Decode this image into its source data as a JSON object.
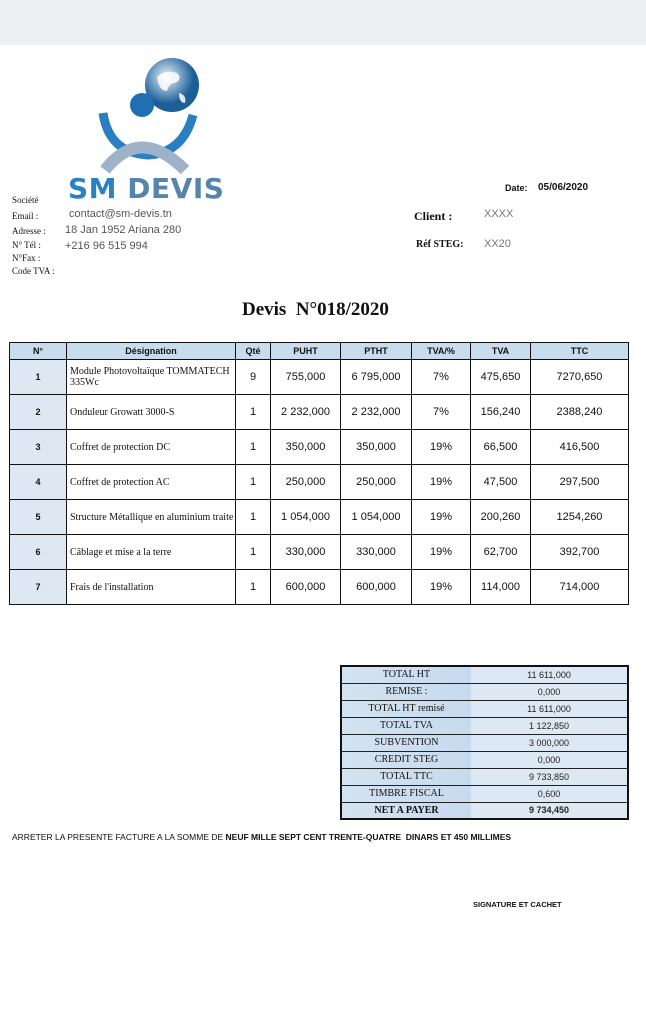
{
  "company": {
    "logo_text_1": "SM",
    "logo_text_2": "DEVIS",
    "labels": {
      "societe": "Société",
      "email": "Email :",
      "adresse": "Adresse :",
      "tel": "N° Tél :",
      "fax": "N°Fax :",
      "tva": "Code TVA :"
    },
    "email": "contact@sm-devis.tn",
    "adresse": "18 Jan 1952 Ariana 280",
    "tel": "+216 96 515 994"
  },
  "meta": {
    "date_label": "Date:",
    "date": "05/06/2020",
    "client_label": "Client :",
    "client": "XXXX",
    "ref_label": "Réf STEG:",
    "ref": "XX20"
  },
  "title": "Devis  N°018/2020",
  "table": {
    "headers": [
      "N°",
      "Désignation",
      "Qté",
      "PUHT",
      "PTHT",
      "TVA/%",
      "TVA",
      "TTC"
    ],
    "rows": [
      [
        "1",
        "Module Photovoltaïque TOMMATECH  335Wc",
        "9",
        "755,000",
        "6 795,000",
        "7%",
        "475,650",
        "7270,650"
      ],
      [
        "2",
        "Onduleur Growatt 3000-S",
        "1",
        "2 232,000",
        "2 232,000",
        "7%",
        "156,240",
        "2388,240"
      ],
      [
        "3",
        "Coffret de protection DC",
        "1",
        "350,000",
        "350,000",
        "19%",
        "66,500",
        "416,500"
      ],
      [
        "4",
        "Coffret de protection AC",
        "1",
        "250,000",
        "250,000",
        "19%",
        "47,500",
        "297,500"
      ],
      [
        "5",
        "Structure Métallique en aluminium traite",
        "1",
        "1 054,000",
        "1 054,000",
        "19%",
        "200,260",
        "1254,260"
      ],
      [
        "6",
        "Câblage et mise a la terre",
        "1",
        "330,000",
        "330,000",
        "19%",
        "62,700",
        "392,700"
      ],
      [
        "7",
        "Frais de l'installation",
        "1",
        "600,000",
        "600,000",
        "19%",
        "114,000",
        "714,000"
      ]
    ]
  },
  "totals": [
    [
      "TOTAL HT",
      "11 611,000"
    ],
    [
      "REMISE :",
      "0,000"
    ],
    [
      "TOTAL HT remisé",
      "11 611,000"
    ],
    [
      "TOTAL TVA",
      "1 122,850"
    ],
    [
      "SUBVENTION",
      "3 000,000"
    ],
    [
      "CREDIT STEG",
      "0,000"
    ],
    [
      "TOTAL TTC",
      "9 733,850"
    ],
    [
      "TIMBRE FISCAL",
      "0,600"
    ],
    [
      "NET A PAYER",
      "9 734,450"
    ]
  ],
  "amount_text": {
    "prefix": "ARRETER LA PRESENTE FACTURE A LA SOMME DE ",
    "amount": "NEUF MILLE SEPT CENT TRENTE-QUATRE  DINARS ET 450 MILLIMES"
  },
  "signature": "SIGNATURE ET CACHET"
}
